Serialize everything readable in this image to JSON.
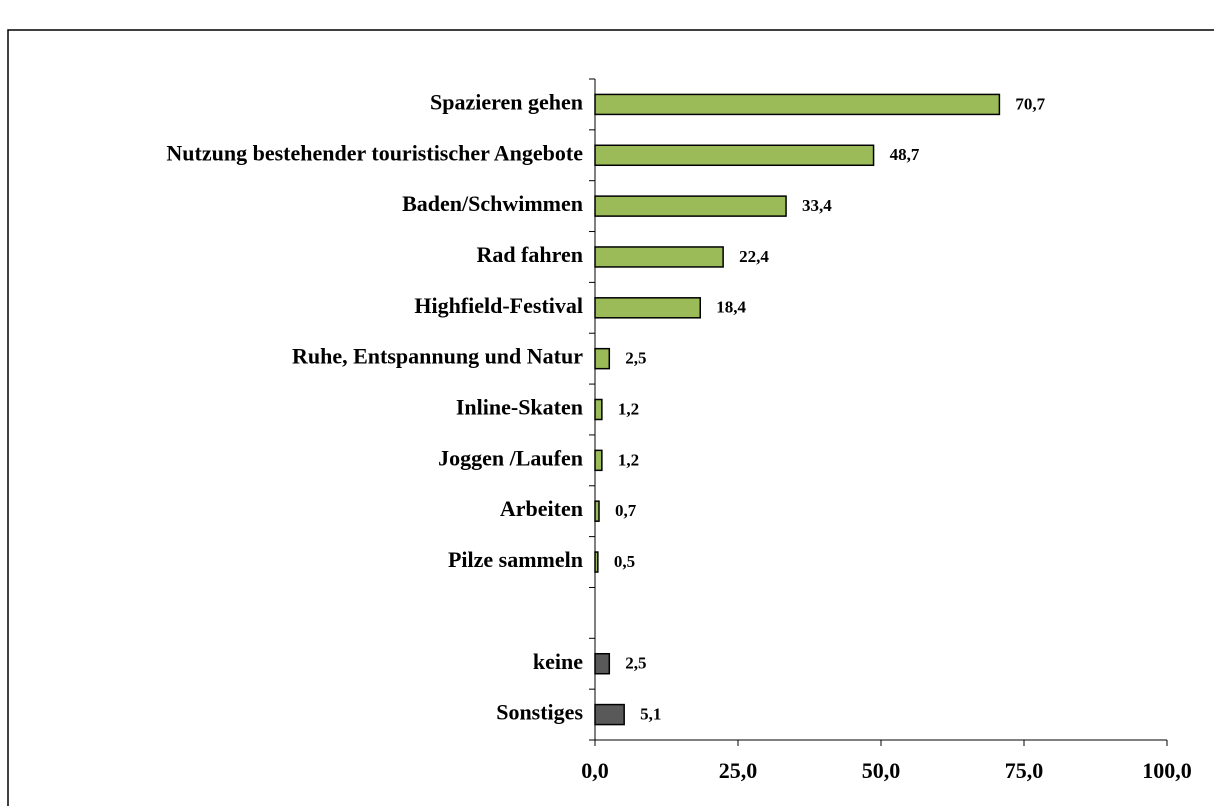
{
  "chart_data": {
    "type": "barh",
    "categories": [
      "Spazieren gehen",
      "Nutzung bestehender touristischer Angebote",
      "Baden/Schwimmen",
      "Rad fahren",
      "Highfield-Festival",
      "Ruhe, Entspannung und Natur",
      "Inline-Skaten",
      "Joggen /Laufen",
      "Arbeiten",
      "Pilze sammeln",
      null,
      "keine",
      "Sonstiges"
    ],
    "values": [
      70.7,
      48.7,
      33.4,
      22.4,
      18.4,
      2.5,
      1.2,
      1.2,
      0.7,
      0.5,
      null,
      2.5,
      5.1
    ],
    "value_labels": [
      "70,7",
      "48,7",
      "33,4",
      "22,4",
      "18,4",
      "2,5",
      "1,2",
      "1,2",
      "0,7",
      "0,5",
      null,
      "2,5",
      "5,1"
    ],
    "colors": [
      "#9bbb59",
      "#9bbb59",
      "#9bbb59",
      "#9bbb59",
      "#9bbb59",
      "#9bbb59",
      "#9bbb59",
      "#9bbb59",
      "#9bbb59",
      "#9bbb59",
      null,
      "#595959",
      "#595959"
    ],
    "xlim": [
      0,
      100
    ],
    "xticks": [
      {
        "value": 0,
        "label": "0,0"
      },
      {
        "value": 25,
        "label": "25,0"
      },
      {
        "value": 50,
        "label": "50,0"
      },
      {
        "value": 75,
        "label": "75,0"
      },
      {
        "value": 100,
        "label": "100,0"
      }
    ],
    "grid": false
  }
}
